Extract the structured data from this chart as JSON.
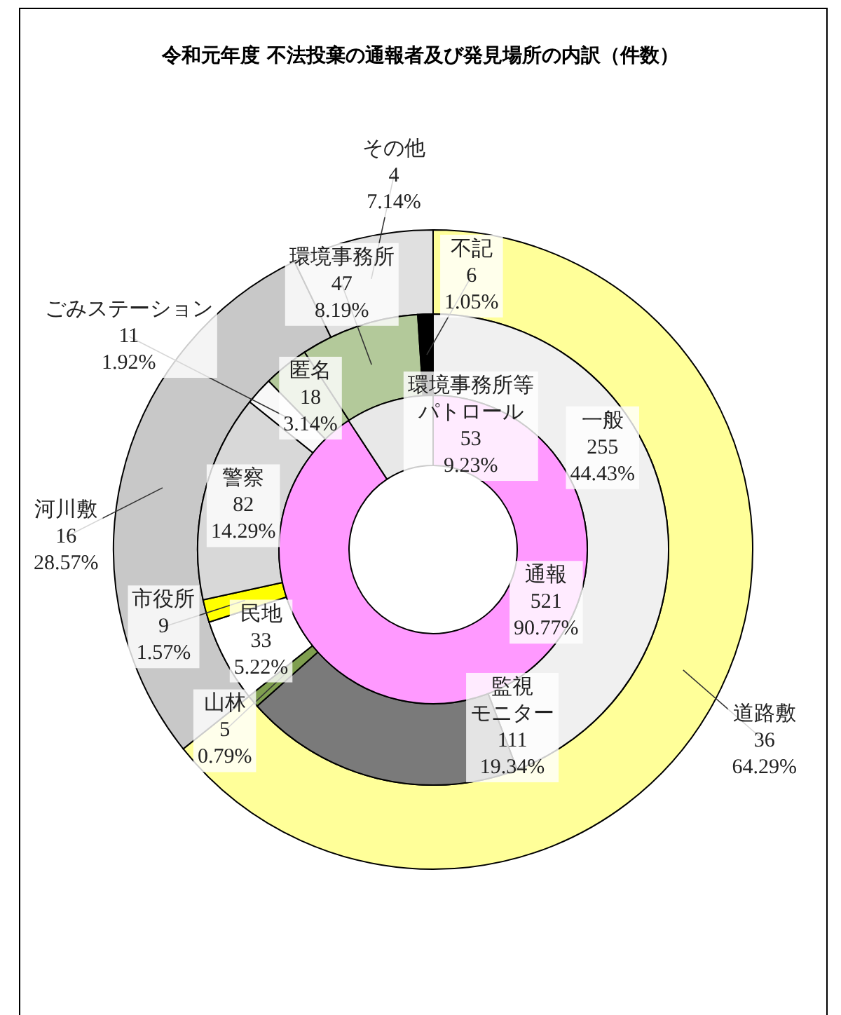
{
  "chart_data": [
    {
      "type": "donut",
      "title": "令和元年度 不法投棄の通報者及び発見場所の内訳（件数）",
      "categories": [
        "道路敷",
        "河川敷",
        "その他"
      ],
      "values": [
        36,
        16,
        4
      ],
      "value_labels": [
        "36\n64.29%",
        "16\n28.57%",
        "4\n7.14%"
      ],
      "colors": [
        "#ffff99",
        "#c8c8c8",
        "#e0e0e0"
      ]
    },
    {
      "type": "donut",
      "categories": [
        "一般",
        "監視モニター",
        "山林",
        "民地",
        "市役所",
        "警察",
        "ごみステーション",
        "匿名",
        "環境事務所",
        "不記"
      ],
      "values": [
        255,
        111,
        5,
        33,
        9,
        82,
        11,
        18,
        47,
        6
      ],
      "value_labels": [
        "255\n44.43%",
        "111\n19.34%",
        "5\n0.79%",
        "33\n5.22%",
        "9\n1.57%",
        "82\n14.29%",
        "11\n1.92%",
        "18\n3.14%",
        "47\n8.19%",
        "6\n1.05%"
      ],
      "colors": [
        "#f0f0f0",
        "#7a7a7a",
        "#7f9f4f",
        "#ffffff",
        "#ffff00",
        "#d8d8d8",
        "#f8f8f8",
        "#b3c99a",
        "#b3c99a",
        "#000000"
      ]
    },
    {
      "type": "donut",
      "categories": [
        "通報",
        "環境事務所等パトロール"
      ],
      "values": [
        521,
        53
      ],
      "value_labels": [
        "521\n90.77%",
        "53\n9.23%"
      ],
      "colors": [
        "#ff99ff",
        "#e8e8e8"
      ]
    }
  ]
}
